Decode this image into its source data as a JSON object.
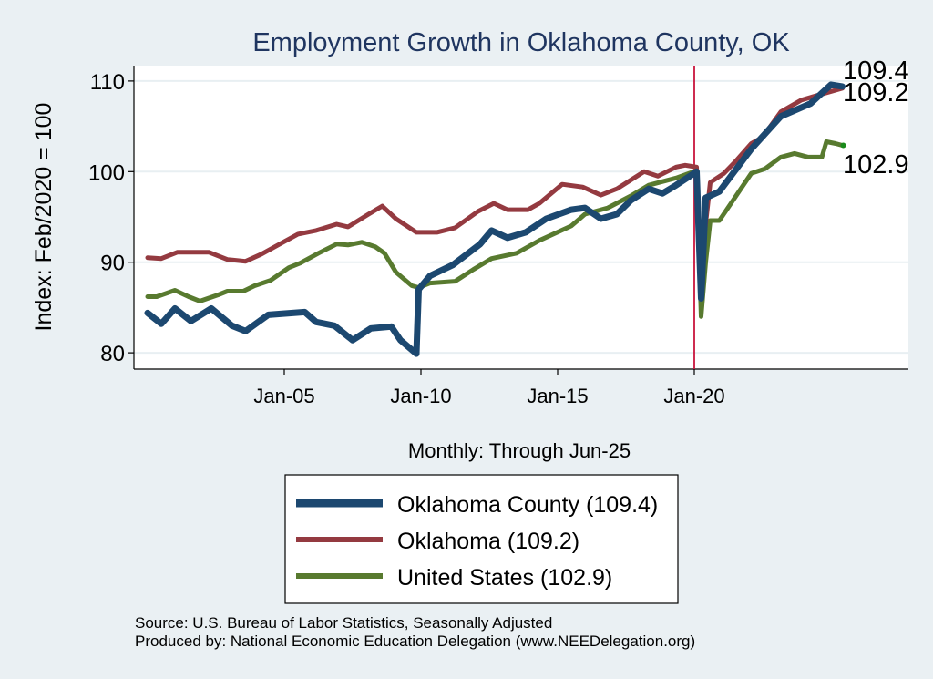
{
  "chart_data": {
    "type": "line",
    "title": "Employment Growth in Oklahoma  County, OK",
    "xlabel": "Monthly: Through Jun-25",
    "ylabel": "Index: Feb/2020 = 100",
    "ylim": [
      78.2,
      111.7
    ],
    "xlim": [
      "1999-07",
      "2027-11"
    ],
    "yticks": [
      80,
      90,
      100,
      110
    ],
    "xticks": [
      {
        "date": "2005-01",
        "label": "Jan-05"
      },
      {
        "date": "2010-01",
        "label": "Jan-10"
      },
      {
        "date": "2015-01",
        "label": "Jan-15"
      },
      {
        "date": "2020-01",
        "label": "Jan-20"
      }
    ],
    "grid": true,
    "reference_line": {
      "date": "2020-01",
      "color": "#c8143c"
    },
    "legend_position": "bottom",
    "series": [
      {
        "name": "Oklahoma  County (109.4)",
        "color": "#1c4870",
        "end_label": "109.4",
        "points": [
          [
            "2000-01",
            84.4
          ],
          [
            "2000-07",
            83.2
          ],
          [
            "2001-01",
            84.9
          ],
          [
            "2001-08",
            83.5
          ],
          [
            "2002-05",
            84.9
          ],
          [
            "2003-02",
            83.0
          ],
          [
            "2003-08",
            82.4
          ],
          [
            "2004-06",
            84.2
          ],
          [
            "2005-10",
            84.5
          ],
          [
            "2006-03",
            83.4
          ],
          [
            "2006-11",
            83.0
          ],
          [
            "2007-07",
            81.4
          ],
          [
            "2008-03",
            82.7
          ],
          [
            "2008-12",
            82.9
          ],
          [
            "2009-04",
            81.4
          ],
          [
            "2009-11",
            79.9
          ],
          [
            "2009-12",
            87.0
          ],
          [
            "2010-05",
            88.5
          ],
          [
            "2011-03",
            89.7
          ],
          [
            "2012-03",
            92.0
          ],
          [
            "2012-08",
            93.5
          ],
          [
            "2013-03",
            92.7
          ],
          [
            "2013-11",
            93.3
          ],
          [
            "2014-08",
            94.8
          ],
          [
            "2015-07",
            95.8
          ],
          [
            "2016-01",
            96.0
          ],
          [
            "2016-08",
            94.8
          ],
          [
            "2017-03",
            95.3
          ],
          [
            "2017-09",
            96.8
          ],
          [
            "2018-05",
            98.1
          ],
          [
            "2018-11",
            97.6
          ],
          [
            "2019-05",
            98.5
          ],
          [
            "2019-11",
            99.5
          ],
          [
            "2020-02",
            100.0
          ],
          [
            "2020-04",
            86.0
          ],
          [
            "2020-06",
            97.1
          ],
          [
            "2020-12",
            97.8
          ],
          [
            "2022-02",
            102.5
          ],
          [
            "2023-03",
            106.1
          ],
          [
            "2024-04",
            107.5
          ],
          [
            "2025-01",
            109.6
          ],
          [
            "2025-06",
            109.4
          ]
        ]
      },
      {
        "name": "Oklahoma (109.2)",
        "color": "#943a40",
        "end_label": "109.2",
        "points": [
          [
            "2000-01",
            90.5
          ],
          [
            "2000-07",
            90.4
          ],
          [
            "2001-02",
            91.1
          ],
          [
            "2002-04",
            91.1
          ],
          [
            "2002-12",
            90.3
          ],
          [
            "2003-08",
            90.1
          ],
          [
            "2004-03",
            90.9
          ],
          [
            "2004-11",
            92.0
          ],
          [
            "2005-07",
            93.1
          ],
          [
            "2006-03",
            93.5
          ],
          [
            "2006-12",
            94.2
          ],
          [
            "2007-05",
            93.9
          ],
          [
            "2008-02",
            95.3
          ],
          [
            "2008-08",
            96.2
          ],
          [
            "2009-02",
            94.8
          ],
          [
            "2009-11",
            93.3
          ],
          [
            "2010-08",
            93.3
          ],
          [
            "2011-04",
            93.8
          ],
          [
            "2012-02",
            95.6
          ],
          [
            "2012-09",
            96.5
          ],
          [
            "2013-03",
            95.8
          ],
          [
            "2013-12",
            95.8
          ],
          [
            "2014-05",
            96.5
          ],
          [
            "2015-03",
            98.6
          ],
          [
            "2015-12",
            98.3
          ],
          [
            "2016-08",
            97.4
          ],
          [
            "2017-03",
            98.1
          ],
          [
            "2018-03",
            100.0
          ],
          [
            "2018-09",
            99.5
          ],
          [
            "2019-05",
            100.5
          ],
          [
            "2019-09",
            100.7
          ],
          [
            "2020-02",
            100.5
          ],
          [
            "2020-04",
            89.7
          ],
          [
            "2020-08",
            98.8
          ],
          [
            "2021-02",
            99.8
          ],
          [
            "2021-07",
            101.1
          ],
          [
            "2022-02",
            103.1
          ],
          [
            "2022-07",
            103.8
          ],
          [
            "2023-03",
            106.6
          ],
          [
            "2023-12",
            107.9
          ],
          [
            "2024-11",
            108.7
          ],
          [
            "2025-06",
            109.2
          ]
        ]
      },
      {
        "name": "United States (102.9)",
        "color": "#587a2f",
        "end_label": "102.9",
        "points": [
          [
            "2000-01",
            86.2
          ],
          [
            "2000-05",
            86.2
          ],
          [
            "2001-01",
            86.9
          ],
          [
            "2001-07",
            86.2
          ],
          [
            "2001-12",
            85.7
          ],
          [
            "2002-08",
            86.4
          ],
          [
            "2002-12",
            86.8
          ],
          [
            "2003-07",
            86.8
          ],
          [
            "2003-12",
            87.4
          ],
          [
            "2004-07",
            88.0
          ],
          [
            "2005-03",
            89.4
          ],
          [
            "2005-08",
            89.9
          ],
          [
            "2006-04",
            91.0
          ],
          [
            "2006-12",
            92.0
          ],
          [
            "2007-05",
            91.9
          ],
          [
            "2007-11",
            92.2
          ],
          [
            "2008-05",
            91.7
          ],
          [
            "2008-09",
            91.0
          ],
          [
            "2009-02",
            88.9
          ],
          [
            "2009-09",
            87.4
          ],
          [
            "2009-12",
            87.2
          ],
          [
            "2010-05",
            87.7
          ],
          [
            "2011-04",
            87.9
          ],
          [
            "2011-12",
            89.2
          ],
          [
            "2012-08",
            90.4
          ],
          [
            "2013-07",
            91.0
          ],
          [
            "2014-05",
            92.4
          ],
          [
            "2015-07",
            94.0
          ],
          [
            "2016-01",
            95.3
          ],
          [
            "2016-11",
            96.0
          ],
          [
            "2017-09",
            97.3
          ],
          [
            "2018-05",
            98.5
          ],
          [
            "2019-05",
            99.3
          ],
          [
            "2020-02",
            100.1
          ],
          [
            "2020-04",
            84.0
          ],
          [
            "2020-06",
            90.0
          ],
          [
            "2020-08",
            94.6
          ],
          [
            "2020-12",
            94.6
          ],
          [
            "2022-02",
            99.8
          ],
          [
            "2022-08",
            100.3
          ],
          [
            "2023-03",
            101.6
          ],
          [
            "2023-09",
            102.0
          ],
          [
            "2024-03",
            101.6
          ],
          [
            "2024-09",
            101.6
          ],
          [
            "2024-11",
            103.3
          ],
          [
            "2025-03",
            103.1
          ],
          [
            "2025-06",
            102.9
          ]
        ]
      }
    ]
  },
  "footer": {
    "source": "Source: U.S. Bureau of Labor Statistics, Seasonally Adjusted",
    "produced_by": "Produced by: National Economic Education Delegation (www.NEEDelegation.org)"
  }
}
